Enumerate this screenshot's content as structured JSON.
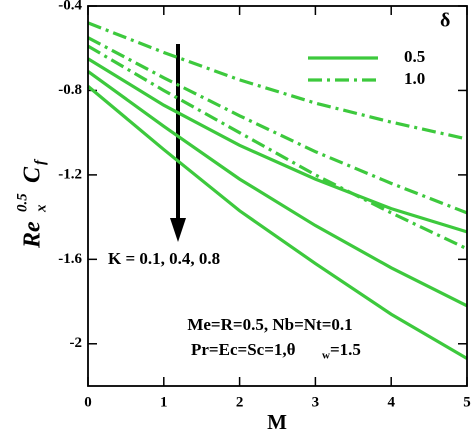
{
  "chart_data": {
    "type": "line",
    "xlabel": "M",
    "ylabel": {
      "parts": [
        "Re",
        "x",
        "0.5",
        "C",
        "f"
      ]
    },
    "x": [
      0,
      1,
      2,
      3,
      4,
      5
    ],
    "xlim": [
      0,
      5
    ],
    "xticks": [
      0,
      1,
      2,
      3,
      4,
      5
    ],
    "ylim": [
      -2.2,
      -0.4
    ],
    "yticks": [
      -0.4,
      -0.8,
      -1.2,
      -1.6,
      -2
    ],
    "series": [
      {
        "style": "solid",
        "color": "#3dc93d",
        "values": [
          -0.65,
          -0.87,
          -1.06,
          -1.22,
          -1.36,
          -1.47
        ]
      },
      {
        "style": "solid",
        "color": "#3dc93d",
        "values": [
          -0.71,
          -0.97,
          -1.22,
          -1.44,
          -1.64,
          -1.82
        ]
      },
      {
        "style": "solid",
        "color": "#3dc93d",
        "values": [
          -0.78,
          -1.08,
          -1.37,
          -1.62,
          -1.86,
          -2.07
        ]
      },
      {
        "style": "dashdot",
        "color": "#3dc93d",
        "values": [
          -0.48,
          -0.62,
          -0.75,
          -0.86,
          -0.95,
          -1.03
        ]
      },
      {
        "style": "dashdot",
        "color": "#3dc93d",
        "values": [
          -0.55,
          -0.74,
          -0.92,
          -1.09,
          -1.24,
          -1.38
        ]
      },
      {
        "style": "dashdot",
        "color": "#3dc93d",
        "values": [
          -0.59,
          -0.8,
          -1.0,
          -1.2,
          -1.38,
          -1.55
        ]
      }
    ],
    "legend": {
      "title": "δ",
      "entries": [
        {
          "label": "0.5",
          "style": "solid",
          "color": "#3dc93d"
        },
        {
          "label": "1.0",
          "style": "dashdot",
          "color": "#3dc93d"
        }
      ]
    },
    "annotations": [
      {
        "parts": [
          "K = 0.1, 0.4, 0.8"
        ]
      },
      {
        "parts": [
          "Me=R=0.5, Nb=Nt=0.1"
        ]
      },
      {
        "parts": [
          "Pr=Ec=Sc=1,θ",
          "w",
          "=1.5"
        ]
      }
    ]
  }
}
